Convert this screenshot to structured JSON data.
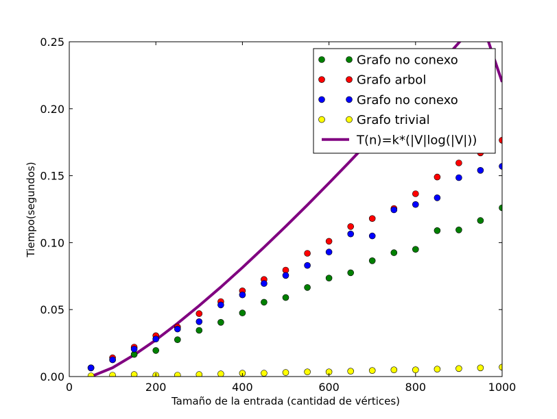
{
  "chart_data": {
    "type": "scatter",
    "xlabel": "Tamaño de la entrada (cantidad de vértices)",
    "ylabel": "Tiempo(segundos)",
    "xlim": [
      0,
      1000
    ],
    "ylim": [
      0,
      0.25
    ],
    "xticks": [
      0,
      200,
      400,
      600,
      800,
      1000
    ],
    "xtick_labels": [
      "0",
      "200",
      "400",
      "600",
      "800",
      "1000"
    ],
    "yticks": [
      0,
      0.05,
      0.1,
      0.15,
      0.2,
      0.25
    ],
    "ytick_labels": [
      "0.00",
      "0.05",
      "0.10",
      "0.15",
      "0.20",
      "0.25"
    ],
    "grid": false,
    "legend_position": "top-right",
    "x": [
      50,
      100,
      150,
      200,
      250,
      300,
      350,
      400,
      450,
      500,
      550,
      600,
      650,
      700,
      750,
      800,
      850,
      900,
      950,
      1000
    ],
    "series": [
      {
        "name": "Grafo no conexo",
        "kind": "markers",
        "color": "#008000",
        "values": [
          0.0065,
          0.0125,
          0.0165,
          0.0195,
          0.0275,
          0.0345,
          0.0405,
          0.0475,
          0.0555,
          0.059,
          0.0665,
          0.0735,
          0.0775,
          0.0865,
          0.0925,
          0.095,
          0.109,
          0.1095,
          0.1165,
          0.126
        ]
      },
      {
        "name": "Grafo arbol",
        "kind": "markers",
        "color": "#ff0000",
        "values": [
          0.0065,
          0.014,
          0.022,
          0.0305,
          0.037,
          0.047,
          0.056,
          0.064,
          0.0725,
          0.0795,
          0.092,
          0.101,
          0.112,
          0.118,
          0.1255,
          0.1365,
          0.149,
          0.1595,
          0.167,
          0.1765
        ]
      },
      {
        "name": "Grafo no conexo",
        "kind": "markers",
        "color": "#0000ff",
        "values": [
          0.0065,
          0.0125,
          0.0205,
          0.028,
          0.0355,
          0.041,
          0.0535,
          0.061,
          0.0695,
          0.0755,
          0.083,
          0.093,
          0.1065,
          0.105,
          0.1245,
          0.1285,
          0.1335,
          0.1485,
          0.154,
          0.157
        ]
      },
      {
        "name": "Grafo trivial",
        "kind": "markers",
        "color": "#ffff00",
        "values": [
          0.0005,
          0.001,
          0.0015,
          0.001,
          0.001,
          0.0015,
          0.002,
          0.0025,
          0.0025,
          0.003,
          0.0035,
          0.0035,
          0.004,
          0.0045,
          0.005,
          0.005,
          0.0055,
          0.006,
          0.0065,
          0.007
        ]
      },
      {
        "name": "T(n)=k*(|V|log(|V|))",
        "kind": "line",
        "color": "#800080",
        "values": [
          0.0,
          0.0066,
          0.0162,
          0.0273,
          0.0397,
          0.0529,
          0.0668,
          0.0814,
          0.0965,
          0.1121,
          0.1281,
          0.1445,
          0.1612,
          0.1783,
          0.1957,
          0.2133,
          0.2312,
          0.2493,
          0.2677,
          0.22
        ]
      }
    ]
  }
}
